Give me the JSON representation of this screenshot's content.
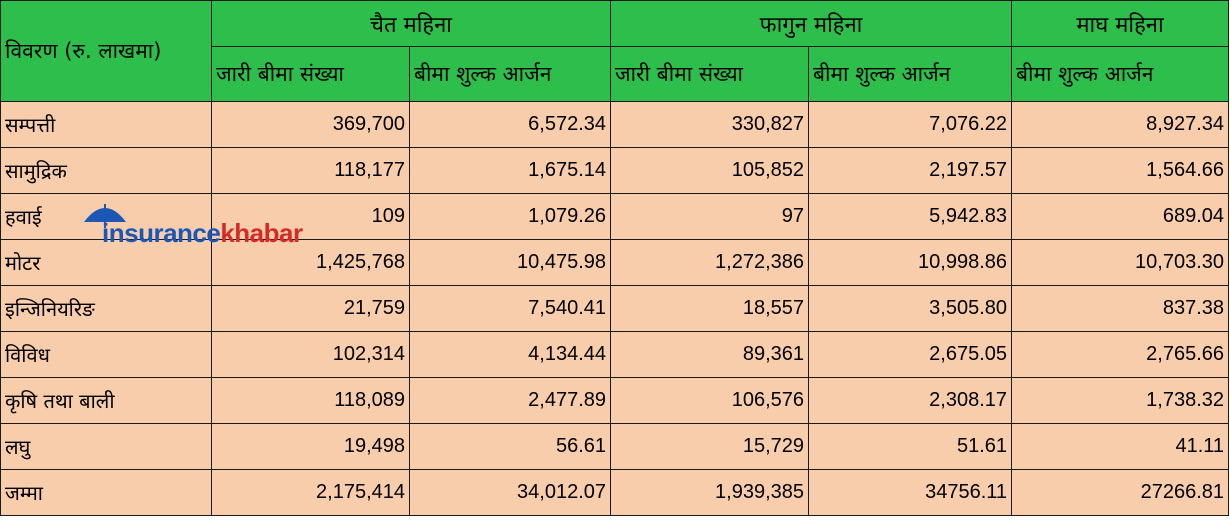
{
  "header": {
    "corner": "विवरण (रु. लाखमा)",
    "groups": [
      "चैत महिना",
      "फागुन महिना",
      "माघ महिना"
    ],
    "sub": [
      "जारी बीमा संख्या",
      "बीमा शुल्क आर्जन",
      "जारी बीमा संख्या",
      "बीमा शुल्क आर्जन",
      "बीमा शुल्क आर्जन"
    ]
  },
  "rows": [
    {
      "label": "सम्पत्ती",
      "values": [
        "369,700",
        "6,572.34",
        "330,827",
        "7,076.22",
        "8,927.34"
      ]
    },
    {
      "label": "सामुद्रिक",
      "values": [
        "118,177",
        "1,675.14",
        "105,852",
        "2,197.57",
        "1,564.66"
      ]
    },
    {
      "label": "हवाई",
      "values": [
        "109",
        "1,079.26",
        "97",
        "5,942.83",
        "689.04"
      ]
    },
    {
      "label": "मोटर",
      "values": [
        "1,425,768",
        "10,475.98",
        "1,272,386",
        "10,998.86",
        "10,703.30"
      ]
    },
    {
      "label": "इन्जिनियरिङ",
      "values": [
        "21,759",
        "7,540.41",
        "18,557",
        "3,505.80",
        "837.38"
      ]
    },
    {
      "label": "विविध",
      "values": [
        "102,314",
        "4,134.44",
        "89,361",
        "2,675.05",
        "2,765.66"
      ]
    },
    {
      "label": "कृषि तथा बाली",
      "values": [
        "118,089",
        "2,477.89",
        "106,576",
        "2,308.17",
        "1,738.32"
      ]
    },
    {
      "label": " लघु",
      "values": [
        "19,498",
        "56.61",
        "15,729",
        "51.61",
        "41.11"
      ]
    },
    {
      "label": "जम्मा",
      "values": [
        "2,175,414",
        "34,012.07",
        "1,939,385",
        "34756.11",
        "27266.81"
      ]
    }
  ],
  "watermark": {
    "part1": "insurance",
    "part2": "khabar"
  },
  "colors": {
    "header": "#2ebe4b",
    "body": "#f8cdac",
    "logo_blue": "#1b57b5",
    "logo_red": "#d62a26"
  }
}
